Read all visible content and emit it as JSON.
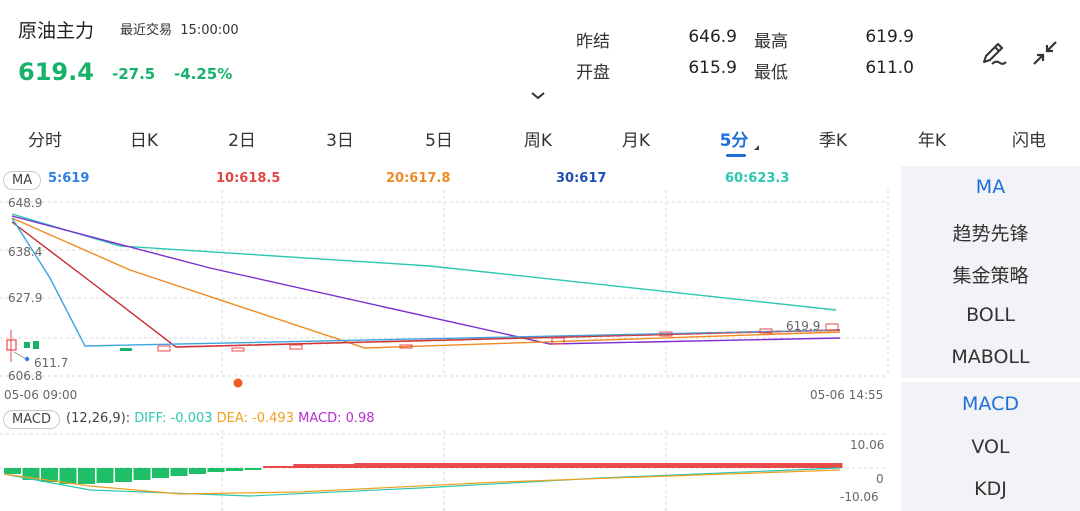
{
  "header": {
    "instrument": "原油主力",
    "status": "最近交易",
    "time": "15:00:00",
    "price": "619.4",
    "change": "-27.5",
    "change_pct": "-4.25%",
    "stats": [
      {
        "label": "昨结",
        "value": "646.9"
      },
      {
        "label": "最高",
        "value": "619.9"
      },
      {
        "label": "开盘",
        "value": "615.9"
      },
      {
        "label": "最低",
        "value": "611.0"
      }
    ],
    "icons": [
      "draw-pen-icon",
      "collapse-arrows-icon",
      "chevron-down-icon"
    ]
  },
  "tabs": [
    "分时",
    "日K",
    "2日",
    "3日",
    "5日",
    "周K",
    "月K",
    "5分",
    "季K",
    "年K",
    "闪电"
  ],
  "active_tab": "5分",
  "ma": {
    "tag": "MA",
    "values": [
      {
        "label": "5:619",
        "color": "#2f7fe0"
      },
      {
        "label": "10:618.5",
        "color": "#e04848"
      },
      {
        "label": "20:617.8",
        "color": "#f08a24"
      },
      {
        "label": "30:617",
        "color": "#1f4fb5"
      },
      {
        "label": "60:623.3",
        "color": "#2cc7b0"
      }
    ]
  },
  "chart_labels": {
    "y_high": "648.9",
    "y_2": "638.4",
    "y_3": "627.9",
    "y_low": "606.8",
    "low_marker": "611.7",
    "last_marker": "619.9",
    "x_start": "05-06 09:00",
    "x_end": "05-06 14:55"
  },
  "macd": {
    "tag": "MACD",
    "params": "(12,26,9):",
    "diff": "DIFF: -0.003",
    "dea": "DEA: -0.493",
    "macd": "MACD: 0.98",
    "y_max": "10.06",
    "y_zero": "0",
    "y_min": "-10.06"
  },
  "side_panel": {
    "items": [
      "MA",
      "趋势先锋",
      "集金策略",
      "BOLL",
      "MABOLL",
      "MACD",
      "VOL",
      "KDJ"
    ],
    "active": [
      "MA",
      "MACD"
    ]
  },
  "colors": {
    "up": "#e84a4a",
    "down": "#16b26a",
    "accent": "#1e6fd9"
  }
}
